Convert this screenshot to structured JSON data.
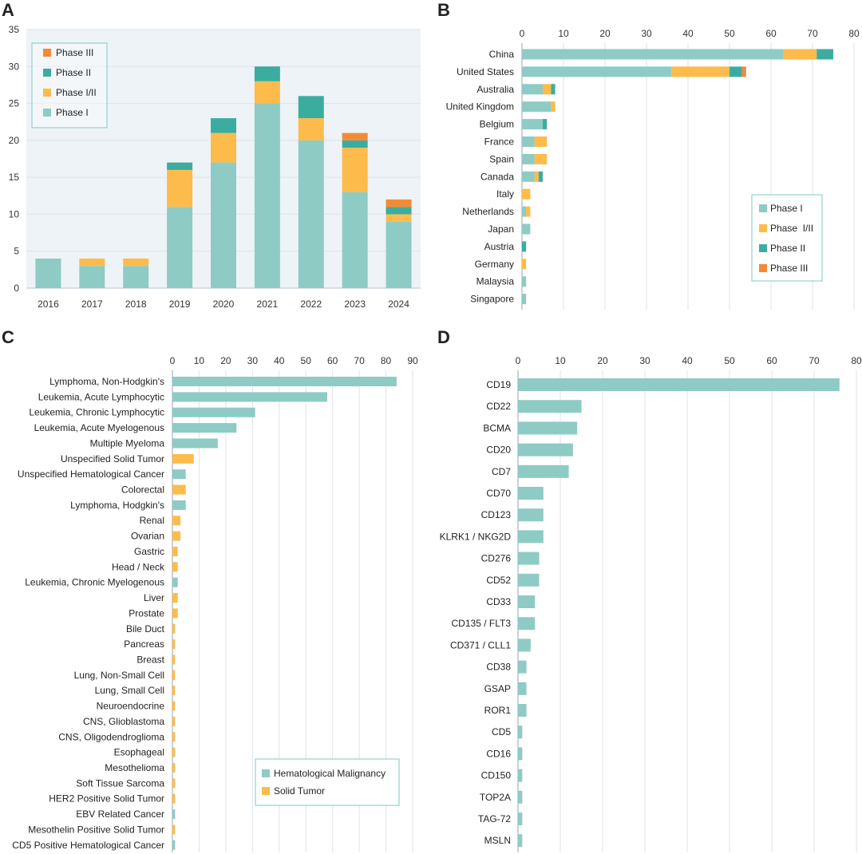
{
  "colors": {
    "phase1": "#8ecbc4",
    "phase12": "#fdbb4b",
    "phase2": "#3bada0",
    "phase3": "#f58a35",
    "hema": "#8ecbc4",
    "solid": "#fdbb4b",
    "plot_bg": "#eef3f8",
    "grid": "#dde3ea",
    "legend_border": "#7ecac3"
  },
  "chart_data": [
    {
      "panel": "A",
      "type": "bar",
      "stacked": true,
      "orientation": "vertical",
      "categories": [
        "2016",
        "2017",
        "2018",
        "2019",
        "2020",
        "2021",
        "2022",
        "2023",
        "2024"
      ],
      "series": [
        {
          "name": "Phase I",
          "color_key": "phase1",
          "values": [
            4,
            3,
            3,
            11,
            17,
            25,
            20,
            13,
            9
          ]
        },
        {
          "name": "Phase I/II",
          "color_key": "phase12",
          "values": [
            0,
            1,
            1,
            5,
            4,
            3,
            3,
            6,
            1
          ]
        },
        {
          "name": "Phase II",
          "color_key": "phase2",
          "values": [
            0,
            0,
            0,
            1,
            2,
            2,
            3,
            1,
            1
          ]
        },
        {
          "name": "Phase III",
          "color_key": "phase3",
          "values": [
            0,
            0,
            0,
            0,
            0,
            0,
            0,
            1,
            1
          ]
        }
      ],
      "legend_order": [
        "Phase III",
        "Phase II",
        "Phase I/II",
        "Phase I"
      ],
      "ylim": [
        0,
        35
      ],
      "yticks": [
        0,
        5,
        10,
        15,
        20,
        25,
        30,
        35
      ],
      "grid": true,
      "legend_position": "top-left"
    },
    {
      "panel": "B",
      "type": "bar",
      "stacked": true,
      "orientation": "horizontal",
      "categories": [
        "China",
        "United States",
        "Australia",
        "United Kingdom",
        "Belgium",
        "France",
        "Spain",
        "Canada",
        "Italy",
        "Netherlands",
        "Japan",
        "Austria",
        "Germany",
        "Malaysia",
        "Singapore"
      ],
      "series": [
        {
          "name": "Phase I",
          "color_key": "phase1",
          "values": [
            63,
            36,
            5,
            7,
            5,
            3,
            3,
            3,
            0,
            1,
            2,
            0,
            0,
            1,
            1
          ]
        },
        {
          "name": "Phase  I/II",
          "color_key": "phase12",
          "values": [
            8,
            14,
            2,
            1,
            0,
            3,
            3,
            1,
            2,
            1,
            0,
            0,
            1,
            0,
            0
          ]
        },
        {
          "name": "Phase II",
          "color_key": "phase2",
          "values": [
            4,
            3,
            1,
            0,
            1,
            0,
            0,
            1,
            0,
            0,
            0,
            1,
            0,
            0,
            0
          ]
        },
        {
          "name": "Phase III",
          "color_key": "phase3",
          "values": [
            0,
            1,
            0,
            0,
            0,
            0,
            0,
            0,
            0,
            0,
            0,
            0,
            0,
            0,
            0
          ]
        }
      ],
      "legend_order": [
        "Phase I",
        "Phase  I/II",
        "Phase II",
        "Phase III"
      ],
      "xlim": [
        0,
        80
      ],
      "xticks": [
        0,
        10,
        20,
        30,
        40,
        50,
        60,
        70,
        80
      ],
      "grid": true,
      "legend_position": "bottom-right"
    },
    {
      "panel": "C",
      "type": "bar",
      "orientation": "horizontal",
      "categories": [
        "Lymphoma, Non-Hodgkin's",
        "Leukemia, Acute Lymphocytic",
        "Leukemia, Chronic Lymphocytic",
        "Leukemia, Acute Myelogenous",
        "Multiple Myeloma",
        "Unspecified Solid Tumor",
        "Unspecified Hematological Cancer",
        "Colorectal",
        "Lymphoma, Hodgkin's",
        "Renal",
        "Ovarian",
        "Gastric",
        "Head / Neck",
        "Leukemia, Chronic Myelogenous",
        "Liver",
        "Prostate",
        "Bile Duct",
        "Pancreas",
        "Breast",
        "Lung, Non-Small Cell",
        "Lung, Small Cell",
        "Neuroendocrine",
        "CNS, Glioblastoma",
        "CNS, Oligodendroglioma",
        "Esophageal",
        "Mesothelioma",
        "Soft Tissue Sarcoma",
        "HER2 Positive Solid Tumor",
        "EBV Related Cancer",
        "Mesothelin Positive Solid Tumor",
        "CD5 Positive Hematological Cancer"
      ],
      "values": [
        84,
        58,
        31,
        24,
        17,
        8,
        5,
        5,
        5,
        3,
        3,
        2,
        2,
        2,
        2,
        2,
        1,
        1,
        1,
        1,
        1,
        1,
        1,
        1,
        1,
        1,
        1,
        1,
        1,
        1,
        1
      ],
      "groups": [
        "Hematological Malignancy",
        "Hematological Malignancy",
        "Hematological Malignancy",
        "Hematological Malignancy",
        "Hematological Malignancy",
        "Solid Tumor",
        "Hematological Malignancy",
        "Solid Tumor",
        "Hematological Malignancy",
        "Solid Tumor",
        "Solid Tumor",
        "Solid Tumor",
        "Solid Tumor",
        "Hematological Malignancy",
        "Solid Tumor",
        "Solid Tumor",
        "Solid Tumor",
        "Solid Tumor",
        "Solid Tumor",
        "Solid Tumor",
        "Solid Tumor",
        "Solid Tumor",
        "Solid Tumor",
        "Solid Tumor",
        "Solid Tumor",
        "Solid Tumor",
        "Solid Tumor",
        "Solid Tumor",
        "Hematological Malignancy",
        "Solid Tumor",
        "Hematological Malignancy"
      ],
      "legend": [
        {
          "name": "Hematological Malignancy",
          "color_key": "hema"
        },
        {
          "name": "Solid Tumor",
          "color_key": "solid"
        }
      ],
      "xlim": [
        0,
        90
      ],
      "xticks": [
        0,
        10,
        20,
        30,
        40,
        50,
        60,
        70,
        80,
        90
      ],
      "grid": true,
      "legend_position": "bottom-right"
    },
    {
      "panel": "D",
      "type": "bar",
      "orientation": "horizontal",
      "categories": [
        "CD19",
        "CD22",
        "BCMA",
        "CD20",
        "CD7",
        "CD70",
        "CD123",
        "KLRK1 / NKG2D",
        "CD276",
        "CD52",
        "CD33",
        "CD135 / FLT3",
        "CD371 / CLL1",
        "CD38",
        "GSAP",
        "ROR1",
        "CD5",
        "CD16",
        "CD150",
        "TOP2A",
        "TAG-72",
        "MSLN"
      ],
      "values": [
        76,
        15,
        14,
        13,
        12,
        6,
        6,
        6,
        5,
        5,
        4,
        4,
        3,
        2,
        2,
        2,
        1,
        1,
        1,
        1,
        1,
        1
      ],
      "xlim": [
        0,
        80
      ],
      "xticks": [
        0,
        10,
        20,
        30,
        40,
        50,
        60,
        70,
        80
      ],
      "grid": true
    }
  ]
}
